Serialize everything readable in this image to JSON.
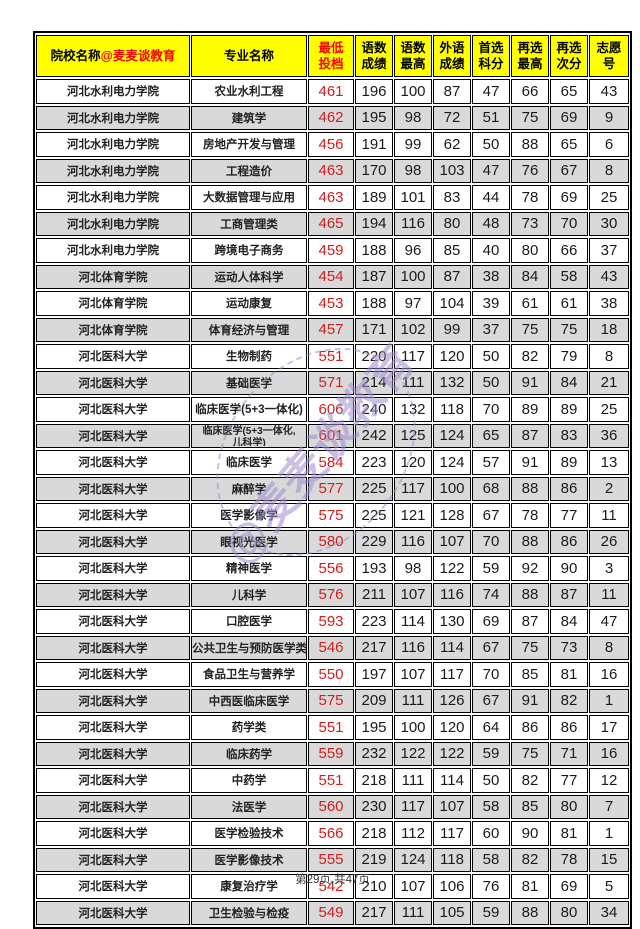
{
  "colors": {
    "header_bg": "#ffff00",
    "header_accent_red": "#ff0000",
    "score_red": "#cf2020",
    "row_alt_bg": "#d9d9d9",
    "border": "#000000",
    "watermark_purple": "#9f8cd0"
  },
  "watermark": {
    "text": "@麦麦谈教育"
  },
  "footer": {
    "text": "第29页,共47页"
  },
  "table": {
    "header": {
      "col1_main": "院校名称",
      "col1_suffix": "@麦麦谈教育",
      "col2": "专业名称",
      "cols": [
        "最低\n投档",
        "语数\n成绩",
        "语数\n最高",
        "外语\n成绩",
        "首选\n科分",
        "再选\n最高",
        "再选\n次分",
        "志愿\n号"
      ]
    },
    "rows": [
      {
        "school": "河北水利电力学院",
        "major": "农业水利工程",
        "min": "461",
        "scores": [
          "196",
          "100",
          "87",
          "47",
          "66",
          "65",
          "43"
        ]
      },
      {
        "school": "河北水利电力学院",
        "major": "建筑学",
        "min": "462",
        "scores": [
          "195",
          "98",
          "72",
          "51",
          "75",
          "69",
          "9"
        ]
      },
      {
        "school": "河北水利电力学院",
        "major": "房地产开发与管理",
        "min": "456",
        "scores": [
          "191",
          "99",
          "62",
          "50",
          "88",
          "65",
          "6"
        ]
      },
      {
        "school": "河北水利电力学院",
        "major": "工程造价",
        "min": "463",
        "scores": [
          "170",
          "98",
          "103",
          "47",
          "76",
          "67",
          "8"
        ]
      },
      {
        "school": "河北水利电力学院",
        "major": "大数据管理与应用",
        "min": "463",
        "scores": [
          "189",
          "101",
          "83",
          "44",
          "78",
          "69",
          "25"
        ]
      },
      {
        "school": "河北水利电力学院",
        "major": "工商管理类",
        "min": "465",
        "scores": [
          "194",
          "116",
          "80",
          "48",
          "73",
          "70",
          "30"
        ]
      },
      {
        "school": "河北水利电力学院",
        "major": "跨境电子商务",
        "min": "459",
        "scores": [
          "188",
          "96",
          "85",
          "40",
          "80",
          "66",
          "37"
        ]
      },
      {
        "school": "河北体育学院",
        "major": "运动人体科学",
        "min": "454",
        "scores": [
          "187",
          "100",
          "87",
          "38",
          "84",
          "58",
          "43"
        ]
      },
      {
        "school": "河北体育学院",
        "major": "运动康复",
        "min": "453",
        "scores": [
          "188",
          "97",
          "104",
          "39",
          "61",
          "61",
          "38"
        ]
      },
      {
        "school": "河北体育学院",
        "major": "体育经济与管理",
        "min": "457",
        "scores": [
          "171",
          "102",
          "99",
          "37",
          "75",
          "75",
          "18"
        ]
      },
      {
        "school": "河北医科大学",
        "major": "生物制药",
        "min": "551",
        "scores": [
          "220",
          "117",
          "120",
          "50",
          "82",
          "79",
          "8"
        ]
      },
      {
        "school": "河北医科大学",
        "major": "基础医学",
        "min": "571",
        "scores": [
          "214",
          "111",
          "132",
          "50",
          "91",
          "84",
          "21"
        ]
      },
      {
        "school": "河北医科大学",
        "major": "临床医学(5+3一体化)",
        "min": "606",
        "scores": [
          "240",
          "132",
          "118",
          "70",
          "89",
          "89",
          "25"
        ]
      },
      {
        "school": "河北医科大学",
        "major": [
          "临床医学(5+3一体化,",
          "儿科学)"
        ],
        "min": "601",
        "scores": [
          "242",
          "125",
          "124",
          "65",
          "87",
          "83",
          "36"
        ]
      },
      {
        "school": "河北医科大学",
        "major": "临床医学",
        "min": "584",
        "scores": [
          "223",
          "120",
          "124",
          "57",
          "91",
          "89",
          "13"
        ]
      },
      {
        "school": "河北医科大学",
        "major": "麻醉学",
        "min": "577",
        "scores": [
          "225",
          "117",
          "100",
          "68",
          "88",
          "86",
          "2"
        ]
      },
      {
        "school": "河北医科大学",
        "major": "医学影像学",
        "min": "575",
        "scores": [
          "225",
          "121",
          "128",
          "67",
          "78",
          "77",
          "11"
        ]
      },
      {
        "school": "河北医科大学",
        "major": "眼视光医学",
        "min": "580",
        "scores": [
          "229",
          "116",
          "107",
          "70",
          "88",
          "86",
          "26"
        ]
      },
      {
        "school": "河北医科大学",
        "major": "精神医学",
        "min": "556",
        "scores": [
          "193",
          "98",
          "122",
          "59",
          "92",
          "90",
          "3"
        ]
      },
      {
        "school": "河北医科大学",
        "major": "儿科学",
        "min": "576",
        "scores": [
          "211",
          "107",
          "116",
          "74",
          "88",
          "87",
          "11"
        ]
      },
      {
        "school": "河北医科大学",
        "major": "口腔医学",
        "min": "593",
        "scores": [
          "223",
          "114",
          "130",
          "69",
          "87",
          "84",
          "47"
        ]
      },
      {
        "school": "河北医科大学",
        "major": "公共卫生与预防医学类",
        "min": "546",
        "scores": [
          "217",
          "116",
          "114",
          "67",
          "75",
          "73",
          "8"
        ]
      },
      {
        "school": "河北医科大学",
        "major": "食品卫生与营养学",
        "min": "550",
        "scores": [
          "197",
          "107",
          "117",
          "70",
          "85",
          "81",
          "16"
        ]
      },
      {
        "school": "河北医科大学",
        "major": "中西医临床医学",
        "min": "575",
        "scores": [
          "209",
          "111",
          "126",
          "67",
          "91",
          "82",
          "1"
        ]
      },
      {
        "school": "河北医科大学",
        "major": "药学类",
        "min": "551",
        "scores": [
          "195",
          "100",
          "120",
          "64",
          "86",
          "86",
          "17"
        ]
      },
      {
        "school": "河北医科大学",
        "major": "临床药学",
        "min": "559",
        "scores": [
          "232",
          "122",
          "122",
          "59",
          "75",
          "71",
          "16"
        ]
      },
      {
        "school": "河北医科大学",
        "major": "中药学",
        "min": "551",
        "scores": [
          "218",
          "111",
          "114",
          "50",
          "82",
          "77",
          "12"
        ]
      },
      {
        "school": "河北医科大学",
        "major": "法医学",
        "min": "560",
        "scores": [
          "230",
          "117",
          "107",
          "58",
          "85",
          "80",
          "7"
        ]
      },
      {
        "school": "河北医科大学",
        "major": "医学检验技术",
        "min": "566",
        "scores": [
          "218",
          "112",
          "117",
          "60",
          "90",
          "81",
          "1"
        ]
      },
      {
        "school": "河北医科大学",
        "major": "医学影像技术",
        "min": "555",
        "scores": [
          "219",
          "124",
          "118",
          "58",
          "82",
          "78",
          "15"
        ]
      },
      {
        "school": "河北医科大学",
        "major": "康复治疗学",
        "min": "542",
        "scores": [
          "210",
          "107",
          "106",
          "76",
          "81",
          "69",
          "5"
        ]
      },
      {
        "school": "河北医科大学",
        "major": "卫生检验与检疫",
        "min": "549",
        "scores": [
          "217",
          "111",
          "105",
          "59",
          "88",
          "80",
          "34"
        ]
      }
    ]
  }
}
